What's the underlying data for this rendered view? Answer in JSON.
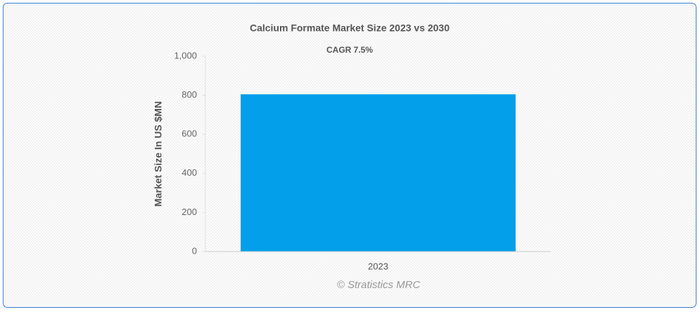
{
  "chart_data": {
    "type": "bar",
    "title": "Calcium Formate Market Size 2023 vs 2030",
    "subtitle": "CAGR 7.5%",
    "y_label": "Market Size In US $MN",
    "watermark": "© Stratistics MRC",
    "categories": [
      "2023"
    ],
    "values": [
      805
    ],
    "color": "#039fea",
    "ylim": [
      0,
      1000
    ],
    "yticks": [
      0,
      200,
      400,
      600,
      800,
      {
        "value": 1000,
        "label": "1,000"
      }
    ],
    "grid": false
  }
}
